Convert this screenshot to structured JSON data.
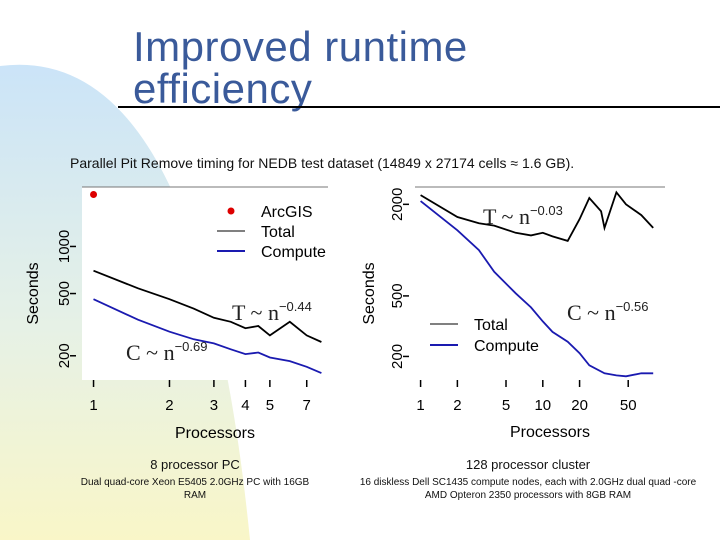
{
  "slide": {
    "title_line1": "Improved runtime",
    "title_line2": "efficiency",
    "subtitle": "Parallel Pit Remove timing for NEDB test dataset (14849 x 27174 cells ≈ 1.6 GB).",
    "colors": {
      "title": "#3a5a9a",
      "background_arc": "#cfe6f7"
    }
  },
  "captions": [
    {
      "title": "8 processor PC",
      "desc": "Dual quad-core Xeon E5405 2.0GHz PC with 16GB RAM"
    },
    {
      "title": "128 processor cluster",
      "desc": "16 diskless Dell SC1435 compute nodes, each with 2.0GHz dual quad -core AMD Opteron 2350 processors with 8GB RAM"
    }
  ],
  "chart_data": [
    {
      "type": "line",
      "scale": "log-log",
      "xlabel": "Processors",
      "ylabel": "Seconds",
      "x_ticks": [
        1,
        2,
        3,
        4,
        5,
        7
      ],
      "y_ticks": [
        200,
        500,
        1000
      ],
      "xlim": [
        0.9,
        8.5
      ],
      "ylim": [
        140,
        2400
      ],
      "legend": {
        "position": "top-right",
        "entries": [
          "ArcGIS",
          "Total",
          "Compute"
        ]
      },
      "series": [
        {
          "name": "ArcGIS",
          "kind": "point",
          "color": "#dd0000",
          "x": [
            1
          ],
          "y": [
            2150
          ]
        },
        {
          "name": "Total",
          "color": "#000000",
          "x": [
            1,
            1.5,
            2,
            2.5,
            3,
            3.5,
            4,
            4.5,
            5,
            6,
            7,
            8
          ],
          "y": [
            700,
            540,
            460,
            400,
            350,
            330,
            300,
            310,
            270,
            330,
            270,
            245
          ]
        },
        {
          "name": "Compute",
          "color": "#1a1ab0",
          "x": [
            1,
            1.5,
            2,
            2.5,
            3,
            3.5,
            4,
            4.5,
            5,
            6,
            7,
            8
          ],
          "y": [
            460,
            340,
            285,
            255,
            240,
            220,
            205,
            210,
            195,
            185,
            170,
            155
          ]
        }
      ],
      "annotations": [
        {
          "base": "T ~ n",
          "exp": "−0.44"
        },
        {
          "base": "C ~ n",
          "exp": "−0.69"
        }
      ]
    },
    {
      "type": "line",
      "scale": "log-log",
      "xlabel": "Processors",
      "ylabel": "Seconds",
      "x_ticks": [
        1,
        2,
        5,
        10,
        20,
        50
      ],
      "y_ticks": [
        200,
        500,
        2000
      ],
      "xlim": [
        0.9,
        100
      ],
      "ylim": [
        140,
        2600
      ],
      "legend": {
        "position": "bottom-left",
        "entries": [
          "Total",
          "Compute"
        ]
      },
      "series": [
        {
          "name": "Total",
          "color": "#000000",
          "x": [
            1,
            2,
            3,
            4,
            6,
            8,
            10,
            12,
            16,
            20,
            24,
            30,
            32,
            40,
            48,
            64,
            80
          ],
          "y": [
            2300,
            1650,
            1500,
            1450,
            1300,
            1250,
            1300,
            1230,
            1150,
            1600,
            2200,
            1800,
            1400,
            2400,
            2000,
            1700,
            1400
          ]
        },
        {
          "name": "Compute",
          "color": "#1a1ab0",
          "x": [
            1,
            2,
            3,
            4,
            6,
            8,
            10,
            12,
            16,
            20,
            24,
            32,
            40,
            48,
            64,
            80
          ],
          "y": [
            2100,
            1350,
            1000,
            720,
            520,
            420,
            340,
            290,
            250,
            210,
            175,
            155,
            150,
            148,
            155,
            155
          ]
        }
      ],
      "annotations": [
        {
          "base": "T ~ n",
          "exp": "−0.03"
        },
        {
          "base": "C ~ n",
          "exp": "−0.56"
        }
      ]
    }
  ]
}
